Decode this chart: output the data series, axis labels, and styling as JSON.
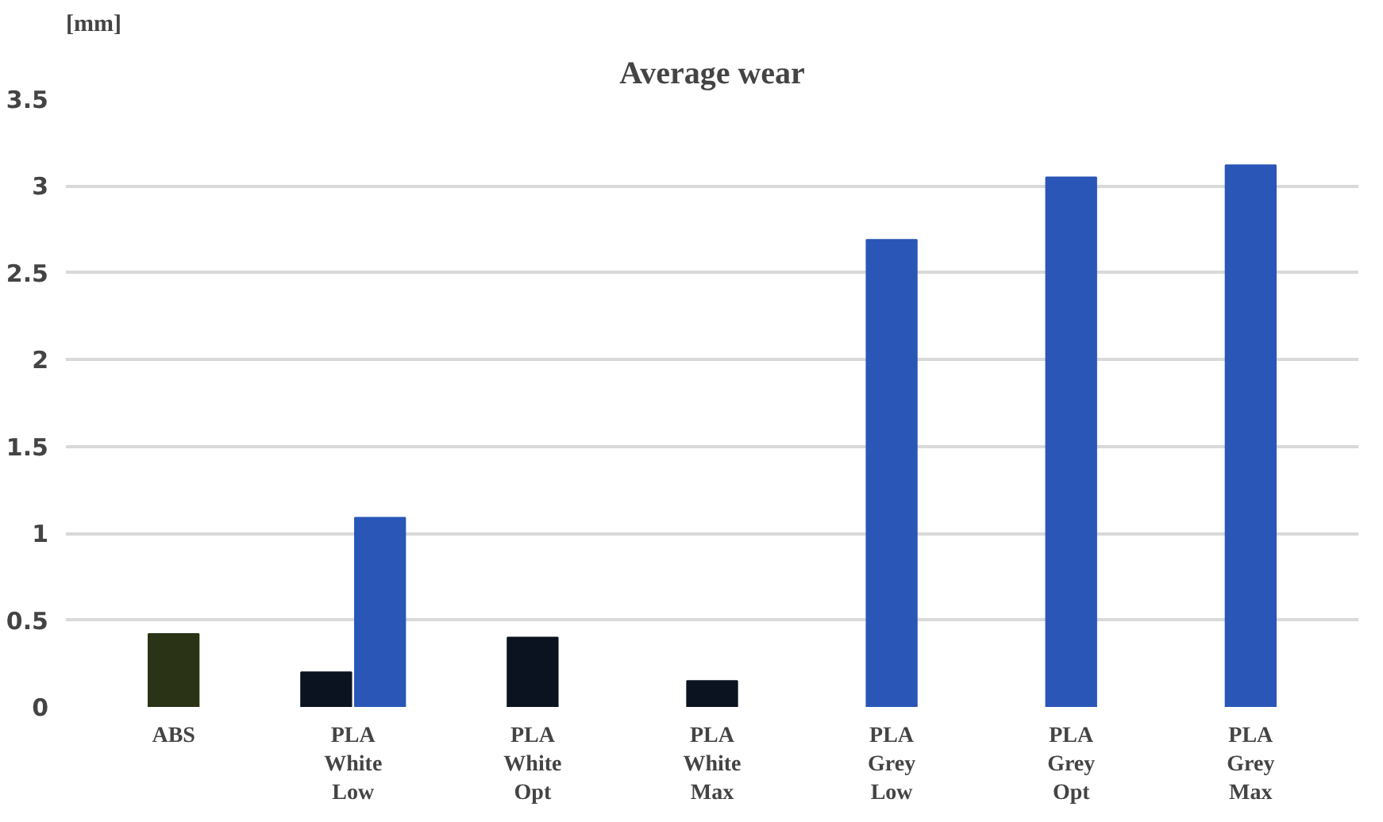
{
  "chart_data": {
    "type": "bar",
    "title": "Average wear",
    "ylabel": "[mm]",
    "categories": [
      [
        "ABS"
      ],
      [
        "PLA",
        "White",
        "Low"
      ],
      [
        "PLA",
        "White",
        "Opt"
      ],
      [
        "PLA",
        "White",
        "Max"
      ],
      [
        "PLA",
        "Grey",
        "Low"
      ],
      [
        "PLA",
        "Grey",
        "Opt"
      ],
      [
        "PLA",
        "Grey",
        "Max"
      ]
    ],
    "series": [
      {
        "colors": [
          "#2a3316",
          "#0b1220",
          "#0b1220",
          "#0b1220",
          null,
          null,
          null
        ],
        "values": [
          0.42,
          0.2,
          0.4,
          0.15,
          null,
          null,
          null
        ]
      },
      {
        "color": "#2a56b8",
        "values": [
          null,
          1.09,
          null,
          null,
          2.69,
          3.05,
          3.12
        ]
      }
    ],
    "ylim": [
      0,
      3.5
    ],
    "yticks": [
      0,
      0.5,
      1,
      1.5,
      2,
      2.5,
      3,
      3.5
    ],
    "grid": "y"
  }
}
